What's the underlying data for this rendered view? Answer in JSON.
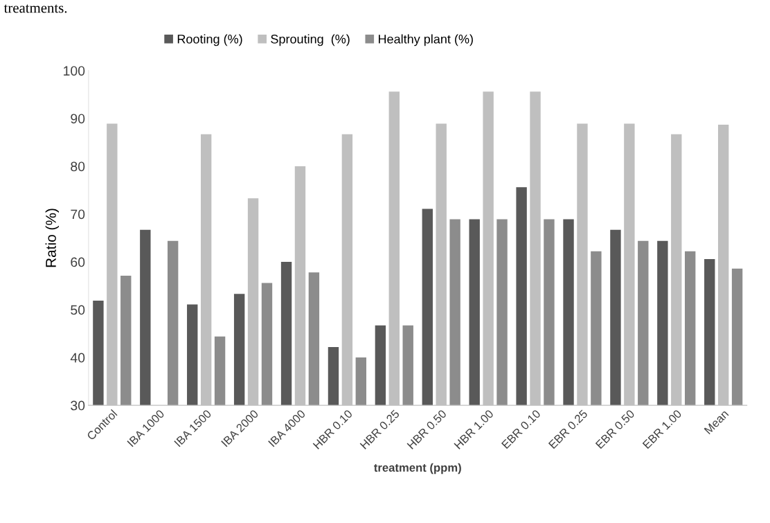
{
  "chart_data": {
    "type": "bar",
    "annotations": [
      "treatments."
    ],
    "xlabel": "treatment (ppm)",
    "ylabel": "Ratio (%)",
    "categories": [
      "Control",
      "IBA 1000",
      "IBA 1500",
      "IBA 2000",
      "IBA 4000",
      "HBR 0.10",
      "HBR 0.25",
      "HBR 0.50",
      "HBR 1.00",
      "EBR 0.10",
      "EBR 0.25",
      "EBR 0.50",
      "EBR 1.00",
      "Mean"
    ],
    "series": [
      {
        "name": "Rooting (%)",
        "color": "#595959",
        "values": [
          51.9,
          66.7,
          51.1,
          53.3,
          60.0,
          42.2,
          46.7,
          71.1,
          68.9,
          75.6,
          68.9,
          66.7,
          64.4,
          60.6
        ]
      },
      {
        "name": "Sprouting  (%)",
        "color": "#bfbfbf",
        "values": [
          88.9,
          null,
          86.7,
          73.3,
          80.0,
          86.7,
          95.6,
          88.9,
          95.6,
          95.6,
          88.9,
          88.9,
          86.7,
          88.7
        ]
      },
      {
        "name": "Healthy plant (%)",
        "color": "#8c8c8c",
        "values": [
          57.1,
          64.4,
          44.4,
          55.6,
          57.8,
          40.0,
          46.7,
          68.9,
          68.9,
          68.9,
          62.2,
          64.4,
          62.2,
          58.6
        ]
      }
    ],
    "ylim": [
      30,
      100
    ],
    "yticks": [
      30,
      40,
      50,
      60,
      70,
      80,
      90,
      100
    ],
    "grid": false,
    "legend": "top"
  }
}
